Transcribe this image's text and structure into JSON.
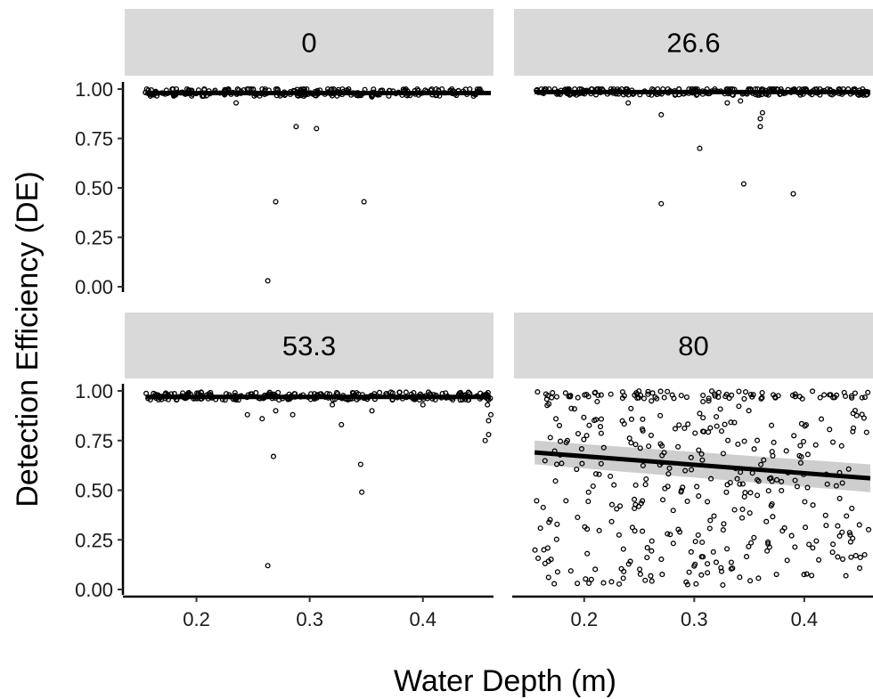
{
  "chart_data": {
    "type": "scatter",
    "facet_layout": "2x2",
    "xlabel": "Water Depth (m)",
    "ylabel": "Detection Efficiency (DE)",
    "xlim": [
      0.15,
      0.46
    ],
    "ylim": [
      0.0,
      1.0
    ],
    "x_ticks": [
      0.2,
      0.3,
      0.4
    ],
    "x_tick_labels": [
      "0.2",
      "0.3",
      "0.4"
    ],
    "y_ticks": [
      0.0,
      0.25,
      0.5,
      0.75,
      1.0
    ],
    "y_tick_labels": [
      "0.00",
      "0.25",
      "0.50",
      "0.75",
      "1.00"
    ],
    "grid": false,
    "legend": "none",
    "colors": {
      "points": "#000000",
      "fit_line": "#000000",
      "confidence_band": "#bdbdbd",
      "strip_background": "#d9d9d9"
    },
    "facets": [
      {
        "label": "0",
        "fit": {
          "x": [
            0.155,
            0.46
          ],
          "y": [
            0.98,
            0.98
          ]
        },
        "outliers": [
          [
            0.165,
            0.965
          ],
          [
            0.235,
            0.93
          ],
          [
            0.27,
            0.43
          ],
          [
            0.288,
            0.81
          ],
          [
            0.263,
            0.03
          ],
          [
            0.306,
            0.8
          ],
          [
            0.348,
            0.43
          ],
          [
            0.355,
            0.96
          ],
          [
            0.29,
            0.965
          ]
        ]
      },
      {
        "label": "26.6",
        "fit": {
          "x": [
            0.155,
            0.46
          ],
          "y": [
            0.985,
            0.985
          ]
        },
        "outliers": [
          [
            0.24,
            0.93
          ],
          [
            0.27,
            0.87
          ],
          [
            0.27,
            0.42
          ],
          [
            0.305,
            0.7
          ],
          [
            0.345,
            0.52
          ],
          [
            0.36,
            0.81
          ],
          [
            0.36,
            0.85
          ],
          [
            0.362,
            0.88
          ],
          [
            0.39,
            0.47
          ],
          [
            0.33,
            0.93
          ],
          [
            0.342,
            0.94
          ]
        ]
      },
      {
        "label": "53.3",
        "fit": {
          "x": [
            0.155,
            0.46
          ],
          "y": [
            0.97,
            0.97
          ]
        },
        "outliers": [
          [
            0.263,
            0.12
          ],
          [
            0.268,
            0.67
          ],
          [
            0.345,
            0.63
          ],
          [
            0.346,
            0.49
          ],
          [
            0.245,
            0.88
          ],
          [
            0.258,
            0.86
          ],
          [
            0.27,
            0.9
          ],
          [
            0.285,
            0.88
          ],
          [
            0.32,
            0.93
          ],
          [
            0.328,
            0.83
          ],
          [
            0.355,
            0.9
          ],
          [
            0.4,
            0.93
          ],
          [
            0.455,
            0.75
          ],
          [
            0.458,
            0.78
          ],
          [
            0.46,
            0.88
          ],
          [
            0.458,
            0.85
          ],
          [
            0.457,
            0.93
          ]
        ]
      },
      {
        "label": "80",
        "fit": {
          "x": [
            0.155,
            0.46
          ],
          "y": [
            0.69,
            0.56
          ]
        },
        "band": {
          "x": [
            0.155,
            0.46
          ],
          "upper": [
            0.75,
            0.63
          ],
          "lower": [
            0.63,
            0.49
          ]
        }
      }
    ]
  }
}
